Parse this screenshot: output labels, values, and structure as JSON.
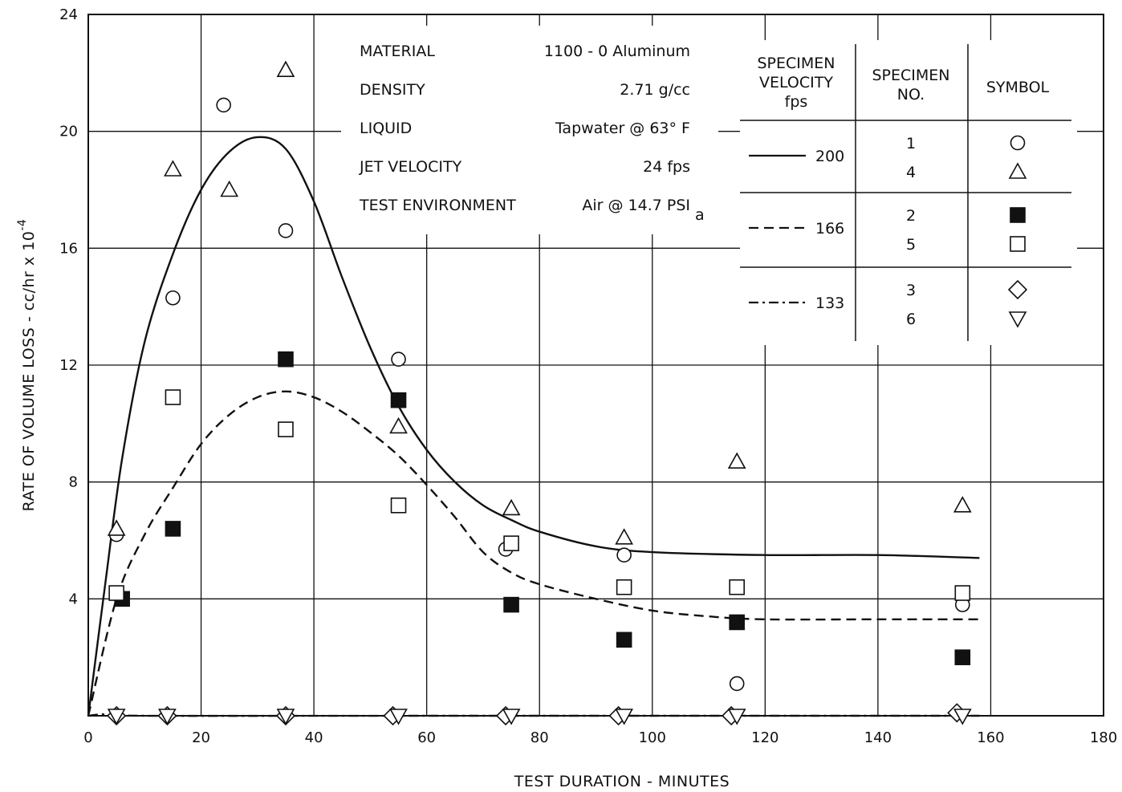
{
  "chart_data": {
    "type": "scatter",
    "xlabel": "TEST DURATION - MINUTES",
    "ylabel": "RATE OF VOLUME LOSS - cc/hr x 10",
    "ylabel_exponent": "-4",
    "xlim": [
      0,
      180
    ],
    "ylim": [
      0,
      24
    ],
    "x_ticks": [
      0,
      20,
      40,
      60,
      80,
      100,
      120,
      140,
      160,
      180
    ],
    "y_ticks": [
      4,
      8,
      12,
      16,
      20,
      24
    ],
    "grid": true,
    "conditions": [
      {
        "label": "MATERIAL",
        "value": "1100 - 0 Aluminum"
      },
      {
        "label": "DENSITY",
        "value": "2.71 g/cc"
      },
      {
        "label": "LIQUID",
        "value": "Tapwater @ 63° F"
      },
      {
        "label": "JET VELOCITY",
        "value": "24 fps"
      },
      {
        "label": "TEST ENVIRONMENT",
        "value": "Air @ 14.7 PSI",
        "subscript": "a"
      }
    ],
    "legend": {
      "placement": "top-right",
      "headers": {
        "velocity": [
          "SPECIMEN",
          "VELOCITY",
          "fps"
        ],
        "specimen": [
          "SPECIMEN",
          "NO."
        ],
        "symbol": [
          "SYMBOL"
        ]
      },
      "groups": [
        {
          "velocity": "200",
          "line_style": "solid",
          "specimens": [
            {
              "no": "1",
              "symbol": "circle"
            },
            {
              "no": "4",
              "symbol": "triangle-up"
            }
          ]
        },
        {
          "velocity": "166",
          "line_style": "dashed",
          "specimens": [
            {
              "no": "2",
              "symbol": "square-filled"
            },
            {
              "no": "5",
              "symbol": "square"
            }
          ]
        },
        {
          "velocity": "133",
          "line_style": "dash-dot",
          "specimens": [
            {
              "no": "3",
              "symbol": "diamond"
            },
            {
              "no": "6",
              "symbol": "triangle-down"
            }
          ]
        }
      ]
    },
    "series": [
      {
        "specimen": "1",
        "symbol": "circle",
        "points": [
          [
            5,
            6.2
          ],
          [
            15,
            14.3
          ],
          [
            24,
            20.9
          ],
          [
            35,
            16.6
          ],
          [
            55,
            12.2
          ],
          [
            74,
            5.7
          ],
          [
            95,
            5.5
          ],
          [
            115,
            1.1
          ],
          [
            155,
            3.8
          ]
        ]
      },
      {
        "specimen": "4",
        "symbol": "triangle-up",
        "points": [
          [
            5,
            6.4
          ],
          [
            15,
            18.7
          ],
          [
            25,
            18.0
          ],
          [
            35,
            22.1
          ],
          [
            55,
            9.9
          ],
          [
            75,
            7.1
          ],
          [
            95,
            6.1
          ],
          [
            115,
            8.7
          ],
          [
            155,
            7.2
          ]
        ]
      },
      {
        "specimen": "2",
        "symbol": "square-filled",
        "points": [
          [
            6,
            4.0
          ],
          [
            15,
            6.4
          ],
          [
            35,
            12.2
          ],
          [
            55,
            10.8
          ],
          [
            75,
            3.8
          ],
          [
            95,
            2.6
          ],
          [
            115,
            3.2
          ],
          [
            155,
            2.0
          ]
        ]
      },
      {
        "specimen": "5",
        "symbol": "square",
        "points": [
          [
            5,
            4.2
          ],
          [
            15,
            10.9
          ],
          [
            35,
            9.8
          ],
          [
            55,
            7.2
          ],
          [
            75,
            5.9
          ],
          [
            95,
            4.4
          ],
          [
            115,
            4.4
          ],
          [
            155,
            4.2
          ]
        ]
      },
      {
        "specimen": "3",
        "symbol": "diamond",
        "points": [
          [
            5,
            0
          ],
          [
            14,
            0
          ],
          [
            35,
            0
          ],
          [
            54,
            0
          ],
          [
            74,
            0
          ],
          [
            94,
            0
          ],
          [
            114,
            0
          ],
          [
            154,
            0.1
          ]
        ]
      },
      {
        "specimen": "6",
        "symbol": "triangle-down",
        "points": [
          [
            5,
            0
          ],
          [
            14,
            0
          ],
          [
            35,
            0
          ],
          [
            55,
            0
          ],
          [
            75,
            0
          ],
          [
            95,
            0
          ],
          [
            115,
            0
          ],
          [
            155,
            0
          ]
        ]
      }
    ],
    "curves": [
      {
        "velocity": "200",
        "line_style": "solid",
        "points": [
          [
            0,
            0
          ],
          [
            3,
            4.5
          ],
          [
            6,
            8.8
          ],
          [
            10,
            12.8
          ],
          [
            15,
            15.8
          ],
          [
            20,
            18.0
          ],
          [
            25,
            19.3
          ],
          [
            30,
            19.8
          ],
          [
            35,
            19.4
          ],
          [
            40,
            17.6
          ],
          [
            45,
            15.0
          ],
          [
            50,
            12.6
          ],
          [
            55,
            10.6
          ],
          [
            60,
            9.1
          ],
          [
            65,
            8.0
          ],
          [
            70,
            7.2
          ],
          [
            75,
            6.7
          ],
          [
            80,
            6.3
          ],
          [
            90,
            5.8
          ],
          [
            100,
            5.6
          ],
          [
            120,
            5.5
          ],
          [
            140,
            5.5
          ],
          [
            158,
            5.4
          ]
        ]
      },
      {
        "velocity": "166",
        "line_style": "dashed",
        "points": [
          [
            0,
            0
          ],
          [
            5,
            4.0
          ],
          [
            10,
            6.2
          ],
          [
            15,
            7.8
          ],
          [
            20,
            9.3
          ],
          [
            25,
            10.3
          ],
          [
            30,
            10.9
          ],
          [
            35,
            11.1
          ],
          [
            40,
            10.9
          ],
          [
            45,
            10.4
          ],
          [
            50,
            9.7
          ],
          [
            55,
            8.9
          ],
          [
            60,
            7.9
          ],
          [
            65,
            6.8
          ],
          [
            70,
            5.6
          ],
          [
            75,
            4.9
          ],
          [
            80,
            4.5
          ],
          [
            90,
            4.0
          ],
          [
            100,
            3.6
          ],
          [
            110,
            3.4
          ],
          [
            120,
            3.3
          ],
          [
            140,
            3.3
          ],
          [
            158,
            3.3
          ]
        ]
      },
      {
        "velocity": "133",
        "line_style": "dash-dot",
        "points": [
          [
            0,
            0
          ],
          [
            3,
            0.05
          ],
          [
            10,
            0
          ],
          [
            60,
            0
          ],
          [
            120,
            0
          ],
          [
            158,
            0
          ]
        ]
      }
    ]
  }
}
